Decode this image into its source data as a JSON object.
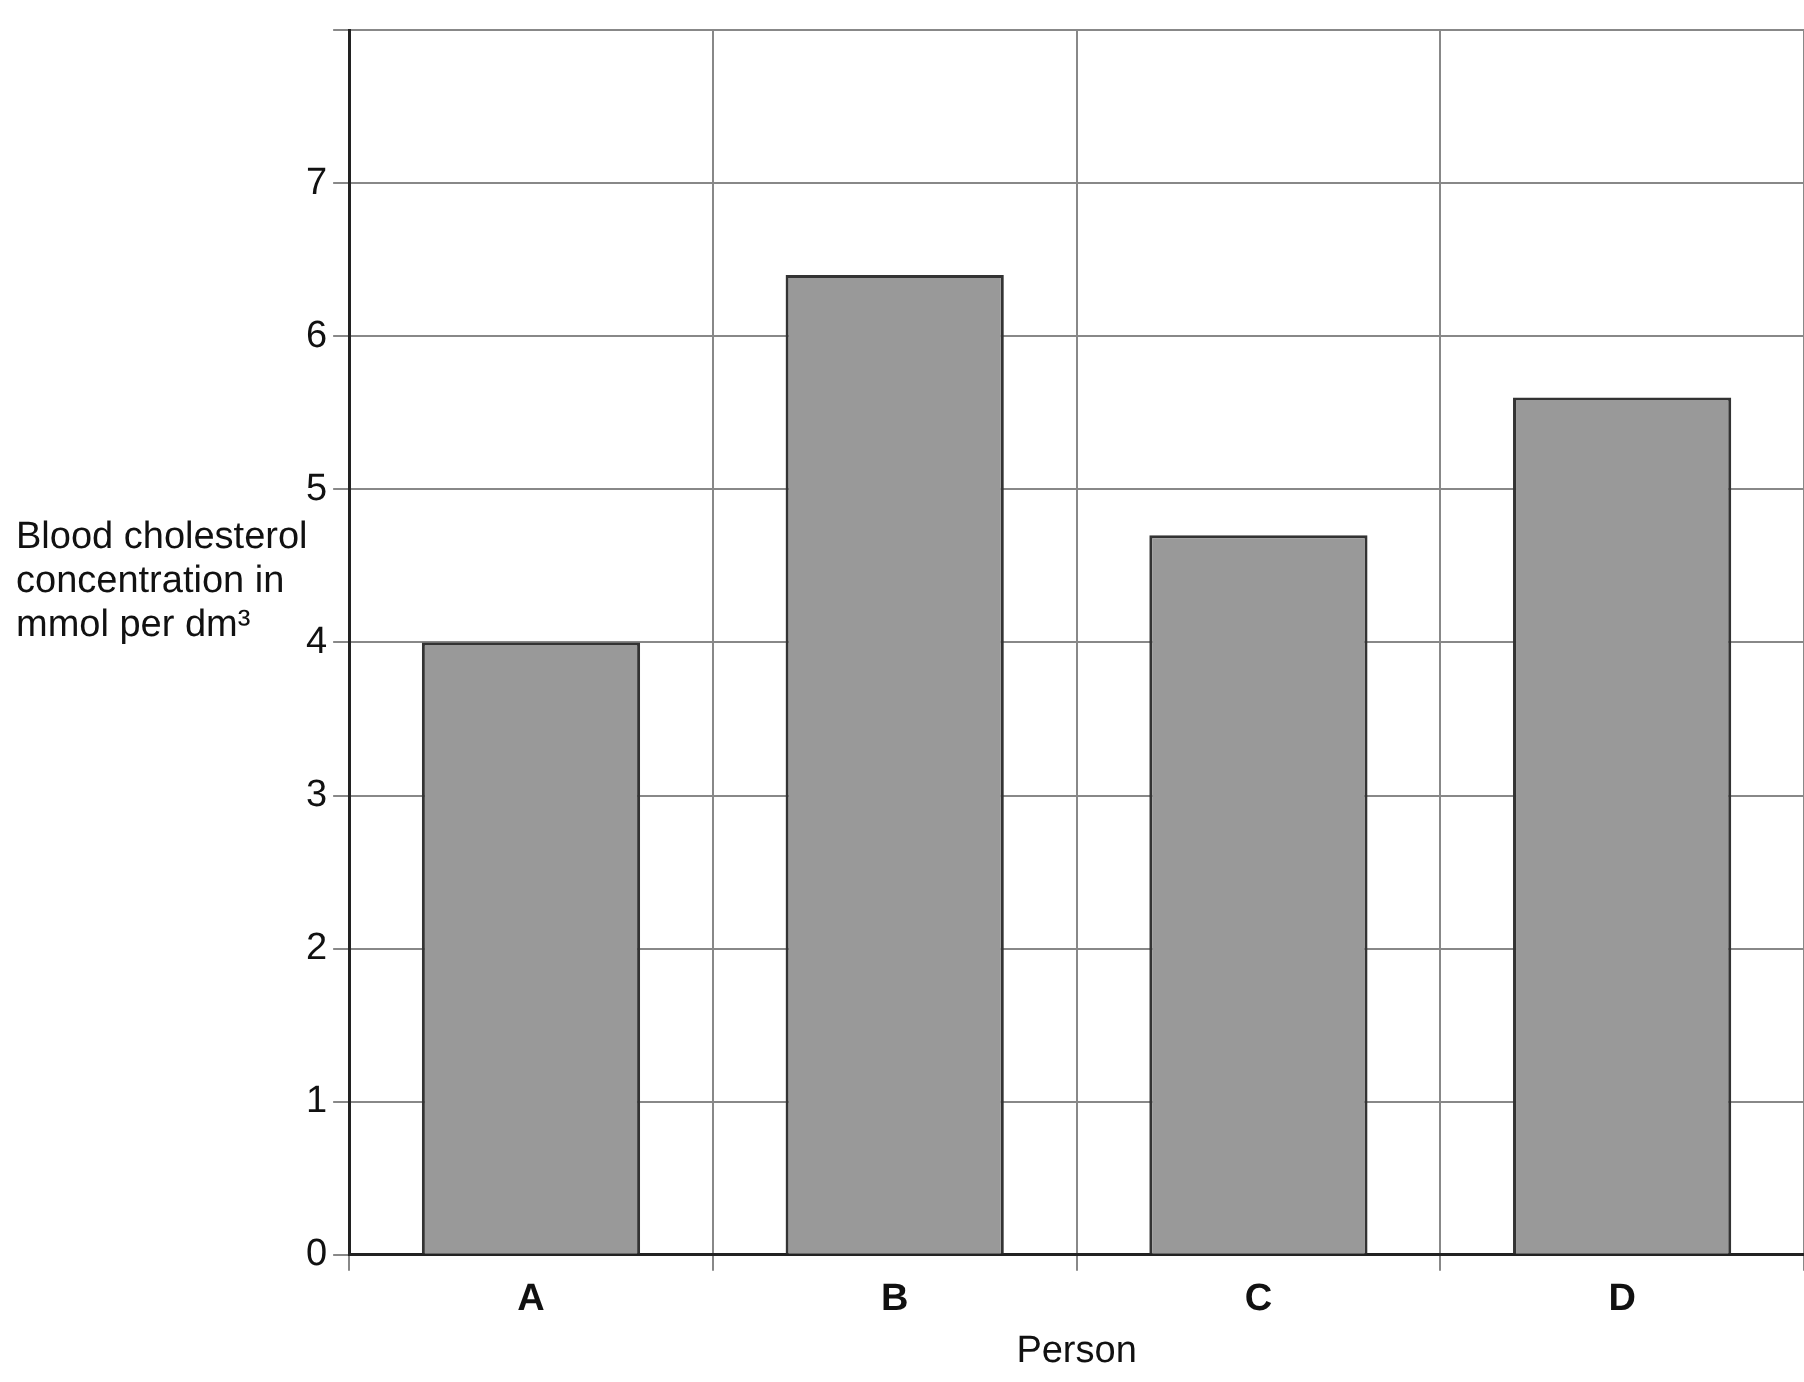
{
  "chart_data": {
    "type": "bar",
    "xlabel": "Person",
    "ylabel": "Blood cholesterol concentration in mmol per dm³",
    "categories": [
      "A",
      "B",
      "C",
      "D"
    ],
    "values": [
      4.0,
      6.4,
      4.7,
      5.6
    ],
    "color": "#999999",
    "ylim": [
      0,
      8
    ],
    "yticks": [
      0,
      1,
      2,
      3,
      4,
      5,
      6,
      7,
      {
        "value": 8,
        "label": null
      }
    ],
    "grid": true,
    "legend": false
  }
}
